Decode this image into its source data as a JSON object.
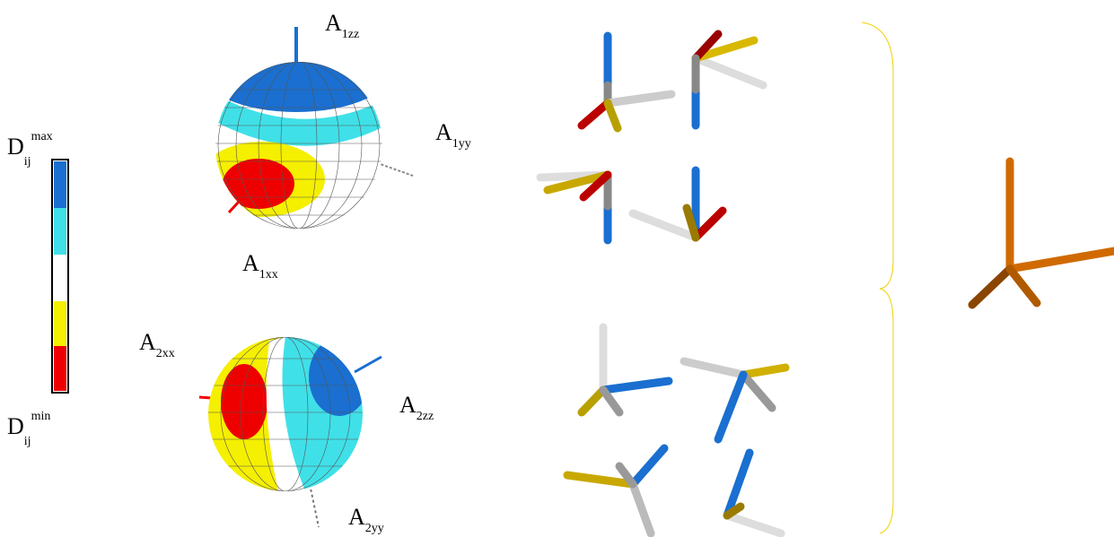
{
  "colorbar": {
    "max_label": {
      "base": "D",
      "sub": "ij",
      "sup": "max"
    },
    "min_label": {
      "base": "D",
      "sub": "ij",
      "sup": "min"
    }
  },
  "spheres": [
    {
      "labels": [
        {
          "base": "A",
          "sub": "1zz"
        },
        {
          "base": "A",
          "sub": "1yy"
        },
        {
          "base": "A",
          "sub": "1xx"
        }
      ]
    },
    {
      "labels": [
        {
          "base": "A",
          "sub": "2xx"
        },
        {
          "base": "A",
          "sub": "2zz"
        },
        {
          "base": "A",
          "sub": "2yy"
        }
      ]
    }
  ]
}
